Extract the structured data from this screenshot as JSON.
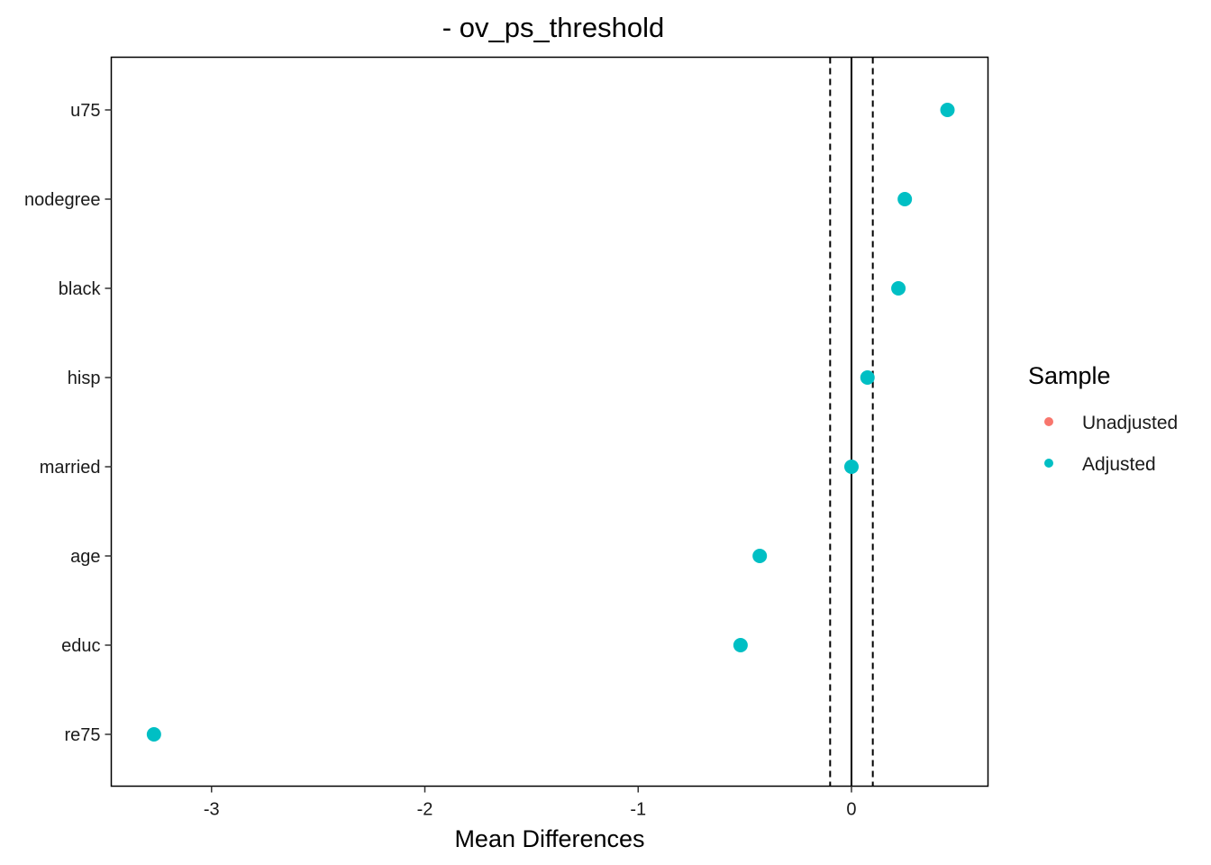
{
  "chart_data": {
    "type": "scatter",
    "title": "- ov_ps_threshold",
    "xlabel": "Mean Differences",
    "ylabel": "",
    "xlim": [
      -3.47,
      0.64
    ],
    "x_ticks": [
      -3,
      -2,
      -1,
      0
    ],
    "x_tick_labels": [
      "-3",
      "-2",
      "-1",
      "0"
    ],
    "categories": [
      "u75",
      "nodegree",
      "black",
      "hisp",
      "married",
      "age",
      "educ",
      "re75"
    ],
    "reference_lines": {
      "solid": 0,
      "dashed": [
        -0.1,
        0.1
      ]
    },
    "series": [
      {
        "name": "Unadjusted",
        "color": "#F8766D",
        "values": []
      },
      {
        "name": "Adjusted",
        "color": "#00BFC4",
        "values": [
          0.45,
          0.25,
          0.22,
          0.075,
          0.0,
          -0.43,
          -0.52,
          -3.27
        ]
      }
    ],
    "legend": {
      "title": "Sample",
      "position": "right",
      "entries": [
        {
          "label": "Unadjusted",
          "color": "#F8766D"
        },
        {
          "label": "Adjusted",
          "color": "#00BFC4"
        }
      ]
    },
    "grid": false
  }
}
